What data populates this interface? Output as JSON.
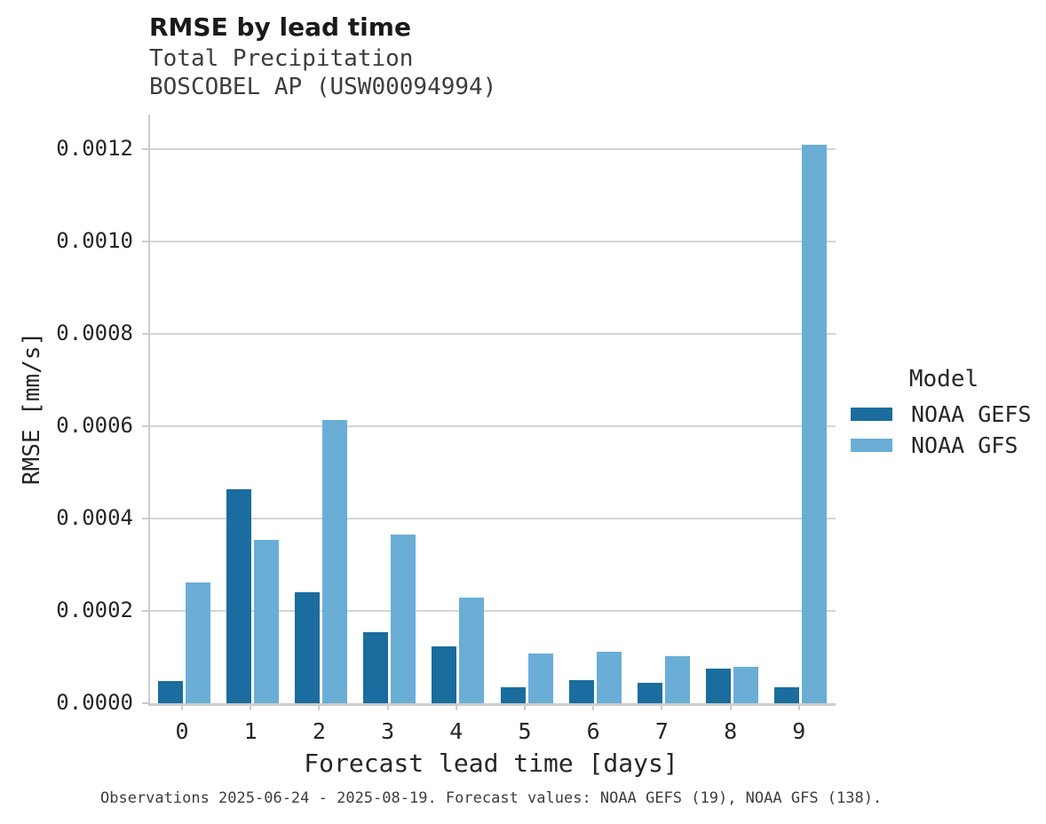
{
  "chart_data": {
    "type": "bar",
    "title": "RMSE by lead time",
    "subtitle1": "Total Precipitation",
    "subtitle2": "BOSCOBEL AP (USW00094994)",
    "xlabel": "Forecast lead time [days]",
    "ylabel": "RMSE [mm/s]",
    "caption": "Observations 2025-06-24 - 2025-08-19. Forecast values: NOAA GEFS (19), NOAA GFS (138).",
    "categories": [
      "0",
      "1",
      "2",
      "3",
      "4",
      "5",
      "6",
      "7",
      "8",
      "9"
    ],
    "series": [
      {
        "name": "NOAA GEFS",
        "color": "#1a6d9e",
        "values": [
          4.77e-05,
          0.000464,
          0.000241,
          0.000153,
          0.000123,
          3.56e-05,
          5.04e-05,
          4.33e-05,
          7.46e-05,
          3.56e-05
        ]
      },
      {
        "name": "NOAA GFS",
        "color": "#6aaed6",
        "values": [
          0.000261,
          0.000354,
          0.000614,
          0.000365,
          0.000228,
          0.000107,
          0.000112,
          0.000101,
          7.85e-05,
          0.001209
        ]
      }
    ],
    "ylim": [
      0,
      0.00125
    ],
    "yticks": [
      0,
      0.0002,
      0.0004,
      0.0006,
      0.0008,
      0.001,
      0.0012
    ],
    "ytick_labels": [
      "0.0000",
      "0.0002",
      "0.0004",
      "0.0006",
      "0.0008",
      "0.0010",
      "0.0012"
    ],
    "grid": "horizontal",
    "legend": {
      "title": "Model",
      "position": "right",
      "items": [
        {
          "label": "NOAA GEFS",
          "color": "#1a6d9e"
        },
        {
          "label": "NOAA GFS",
          "color": "#6aaed6"
        }
      ]
    }
  }
}
